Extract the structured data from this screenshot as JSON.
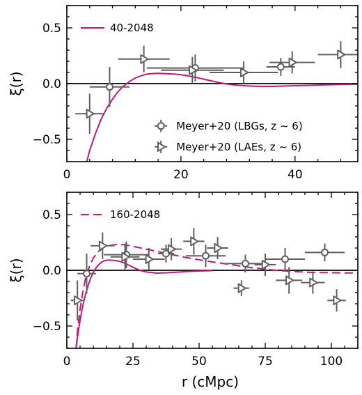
{
  "colors": {
    "model": "#c2187a",
    "data": "#5f5f5f",
    "zero_line": "#000000"
  },
  "chart_data": [
    {
      "type": "line",
      "panel": "top",
      "xlabel": "",
      "ylabel": "ξ(r)",
      "xlim": [
        0,
        51
      ],
      "ylim": [
        -0.7,
        0.7
      ],
      "xticks": [
        0,
        20,
        40
      ],
      "yticks": [
        0.5,
        0.0,
        -0.5
      ],
      "xtick_labels": [
        "0",
        "20",
        "40"
      ],
      "ytick_labels": [
        "0.5",
        "0.0",
        "−0.5"
      ],
      "legend_position": "top-left",
      "model_series": [
        {
          "name": "40-2048",
          "style": "solid",
          "x": [
            3.5,
            4,
            5,
            6,
            7,
            8,
            9,
            10,
            11,
            12,
            13,
            14,
            15,
            16,
            17,
            18,
            19,
            20,
            21,
            22,
            23,
            24,
            25,
            26,
            27,
            28,
            29,
            30,
            32,
            34,
            36,
            38,
            40,
            42,
            44,
            46,
            48,
            51
          ],
          "y": [
            -0.7,
            -0.6,
            -0.45,
            -0.32,
            -0.22,
            -0.14,
            -0.07,
            -0.02,
            0.02,
            0.05,
            0.07,
            0.085,
            0.09,
            0.092,
            0.09,
            0.088,
            0.085,
            0.08,
            0.072,
            0.062,
            0.052,
            0.04,
            0.028,
            0.016,
            0.006,
            -0.003,
            -0.01,
            -0.015,
            -0.022,
            -0.025,
            -0.025,
            -0.022,
            -0.019,
            -0.016,
            -0.013,
            -0.01,
            -0.008,
            -0.005
          ]
        }
      ],
      "data_series": [
        {
          "name": "Meyer+20 (LBGs, z ∼ 6)",
          "marker": "circle",
          "points": [
            {
              "x": 7.5,
              "y": -0.03,
              "xerr": 3.5,
              "yerr": 0.18
            },
            {
              "x": 22.5,
              "y": 0.14,
              "xerr": 8.5,
              "yerr": 0.12
            },
            {
              "x": 37.5,
              "y": 0.15,
              "xerr": 2.5,
              "yerr": 0.08
            }
          ]
        },
        {
          "name": "Meyer+20 (LAEs, z ∼ 6)",
          "marker": "triangle-right",
          "points": [
            {
              "x": 4.0,
              "y": -0.27,
              "xerr": 2.5,
              "yerr": 0.18
            },
            {
              "x": 13.5,
              "y": 0.22,
              "xerr": 4.5,
              "yerr": 0.12
            },
            {
              "x": 22.0,
              "y": 0.12,
              "xerr": 5.5,
              "yerr": 0.12
            },
            {
              "x": 31.0,
              "y": 0.1,
              "xerr": 6.0,
              "yerr": 0.1
            },
            {
              "x": 39.5,
              "y": 0.19,
              "xerr": 4.0,
              "yerr": 0.1
            },
            {
              "x": 48.0,
              "y": 0.26,
              "xerr": 4.0,
              "yerr": 0.12
            }
          ]
        }
      ]
    },
    {
      "type": "line",
      "panel": "bottom",
      "xlabel": "r (cMpc)",
      "ylabel": "ξ(r)",
      "xlim": [
        0,
        110
      ],
      "ylim": [
        -0.7,
        0.7
      ],
      "xticks": [
        0,
        25,
        50,
        75,
        100
      ],
      "yticks": [
        0.5,
        0.0,
        -0.5
      ],
      "xtick_labels": [
        "0",
        "25",
        "50",
        "75",
        "100"
      ],
      "ytick_labels": [
        "0.5",
        "0.0",
        "−0.5"
      ],
      "legend_position": "top-left",
      "model_series": [
        {
          "name": "160-2048",
          "style": "dashed",
          "x": [
            3.5,
            4,
            5,
            6,
            7,
            8,
            9,
            10,
            12,
            14,
            16,
            18,
            20,
            22,
            24,
            26,
            28,
            30,
            35,
            40,
            45,
            50,
            55,
            60,
            65,
            70,
            75,
            80,
            85,
            90,
            95,
            100,
            105,
            110
          ],
          "y": [
            -0.7,
            -0.55,
            -0.35,
            -0.2,
            -0.08,
            0.0,
            0.06,
            0.11,
            0.17,
            0.205,
            0.222,
            0.23,
            0.232,
            0.228,
            0.22,
            0.21,
            0.2,
            0.19,
            0.165,
            0.14,
            0.115,
            0.095,
            0.075,
            0.058,
            0.04,
            0.024,
            0.01,
            -0.002,
            -0.01,
            -0.016,
            -0.02,
            -0.022,
            -0.023,
            -0.023
          ]
        },
        {
          "name": "",
          "style": "solid",
          "x": [
            3.5,
            4,
            5,
            6,
            7,
            8,
            9,
            10,
            11,
            12,
            13,
            14,
            15,
            16,
            17,
            18,
            19,
            20,
            22,
            24,
            26,
            28,
            30,
            34,
            38,
            42,
            46,
            50,
            55
          ],
          "y": [
            -0.7,
            -0.6,
            -0.45,
            -0.32,
            -0.22,
            -0.14,
            -0.07,
            -0.02,
            0.02,
            0.05,
            0.07,
            0.085,
            0.09,
            0.092,
            0.09,
            0.088,
            0.085,
            0.08,
            0.062,
            0.04,
            0.016,
            -0.003,
            -0.015,
            -0.025,
            -0.022,
            -0.016,
            -0.01,
            -0.006,
            -0.003
          ]
        }
      ],
      "data_series": [
        {
          "name": "",
          "marker": "circle",
          "points": [
            {
              "x": 7.5,
              "y": -0.03,
              "xerr": 3.5,
              "yerr": 0.18
            },
            {
              "x": 22.5,
              "y": 0.14,
              "xerr": 8.5,
              "yerr": 0.12
            },
            {
              "x": 37.5,
              "y": 0.15,
              "xerr": 3.0,
              "yerr": 0.08
            },
            {
              "x": 52.5,
              "y": 0.13,
              "xerr": 7.5,
              "yerr": 0.1
            },
            {
              "x": 67.5,
              "y": 0.06,
              "xerr": 7.5,
              "yerr": 0.08
            },
            {
              "x": 82.5,
              "y": 0.1,
              "xerr": 7.5,
              "yerr": 0.1
            },
            {
              "x": 97.5,
              "y": 0.16,
              "xerr": 7.5,
              "yerr": 0.08
            }
          ]
        },
        {
          "name": "",
          "marker": "triangle-right",
          "points": [
            {
              "x": 4.0,
              "y": -0.27,
              "xerr": 2.5,
              "yerr": 0.18
            },
            {
              "x": 13.5,
              "y": 0.22,
              "xerr": 4.5,
              "yerr": 0.12
            },
            {
              "x": 22.0,
              "y": 0.12,
              "xerr": 5.5,
              "yerr": 0.12
            },
            {
              "x": 31.0,
              "y": 0.1,
              "xerr": 6.0,
              "yerr": 0.1
            },
            {
              "x": 39.5,
              "y": 0.19,
              "xerr": 4.0,
              "yerr": 0.1
            },
            {
              "x": 48.0,
              "y": 0.26,
              "xerr": 4.0,
              "yerr": 0.12
            },
            {
              "x": 57.0,
              "y": 0.2,
              "xerr": 4.0,
              "yerr": 0.1
            },
            {
              "x": 66.0,
              "y": -0.16,
              "xerr": 3.0,
              "yerr": 0.07
            },
            {
              "x": 75.0,
              "y": 0.05,
              "xerr": 4.0,
              "yerr": 0.1
            },
            {
              "x": 84.0,
              "y": -0.09,
              "xerr": 5.0,
              "yerr": 0.12
            },
            {
              "x": 93.0,
              "y": -0.11,
              "xerr": 4.5,
              "yerr": 0.1
            },
            {
              "x": 102.0,
              "y": -0.27,
              "xerr": 3.5,
              "yerr": 0.1
            }
          ]
        }
      ]
    }
  ]
}
